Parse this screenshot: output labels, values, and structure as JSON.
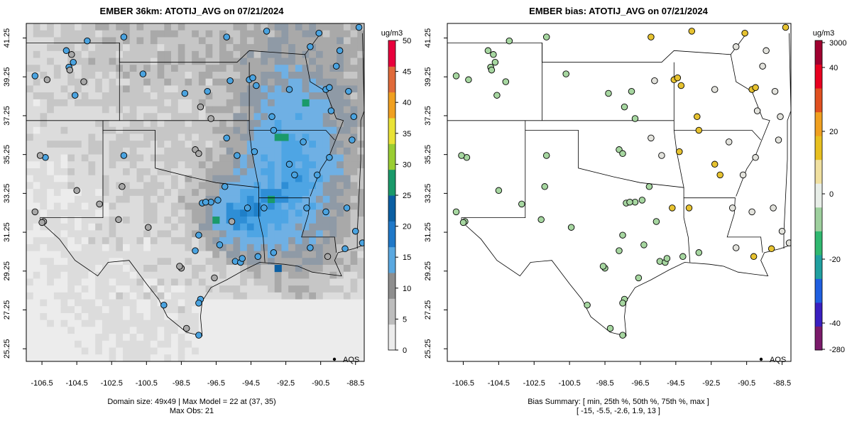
{
  "chart_data": [
    {
      "type": "map",
      "title": "EMBER 36km: ATOTIJ_AVG on 07/21/2024",
      "x_ticks": [
        "-106.5",
        "-104.5",
        "-102.5",
        "-100.5",
        "-98.5",
        "-96.5",
        "-94.5",
        "-92.5",
        "-90.5",
        "-88.5"
      ],
      "y_ticks": [
        "25.25",
        "27.25",
        "29.25",
        "31.25",
        "33.25",
        "35.25",
        "37.25",
        "39.25",
        "41.25"
      ],
      "colorbar": {
        "unit": "ug/m3",
        "ticks": [
          "0",
          "5",
          "10",
          "15",
          "20",
          "25",
          "30",
          "35",
          "40",
          "45",
          "50"
        ],
        "range": [
          0,
          50
        ],
        "colors": [
          "#ececec",
          "#bdbdbd",
          "#8e8e8e",
          "#5aa8e0",
          "#1f78c8",
          "#0b5fa3",
          "#1a9a6a",
          "#9acd32",
          "#e9e236",
          "#f0a020",
          "#e06a3a",
          "#e8003c"
        ]
      },
      "legend": "AQS",
      "footer": [
        "Domain size: 49x49 | Max Model = 22 at (37, 35)",
        "Max Obs: 21"
      ],
      "domain_size": "49x49",
      "max_model": 22,
      "max_model_cell": [
        37,
        35
      ],
      "max_obs": 21
    },
    {
      "type": "map",
      "title": "EMBER bias: ATOTIJ_AVG on 07/21/2024",
      "x_ticks": [
        "-106.5",
        "-104.5",
        "-102.5",
        "-100.5",
        "-98.5",
        "-96.5",
        "-94.5",
        "-92.5",
        "-90.5",
        "-88.5"
      ],
      "y_ticks": [
        "25.25",
        "27.25",
        "29.25",
        "31.25",
        "33.25",
        "35.25",
        "37.25",
        "39.25",
        "41.25"
      ],
      "colorbar": {
        "unit": "ug/m3",
        "ticks": [
          "3000",
          "40",
          "20",
          "0",
          "-20",
          "-40",
          "-280"
        ],
        "colors": [
          "#7a1a6a",
          "#3a1fc0",
          "#1f5fe0",
          "#20a0a0",
          "#30b870",
          "#9ed09e",
          "#e8eee8",
          "#f0e0a0",
          "#e8c020",
          "#f0a020",
          "#e05020",
          "#e80020",
          "#a00030"
        ]
      },
      "legend": "AQS",
      "footer": [
        "Bias Summary: [ min, 25th %, 50th %, 75th %, max ]",
        "[ -15,   -5.5,   -2.6,   1.9,   13 ]"
      ],
      "bias_summary": {
        "min": -15,
        "p25": -5.5,
        "p50": -2.6,
        "p75": 1.9,
        "max": 13
      }
    }
  ]
}
